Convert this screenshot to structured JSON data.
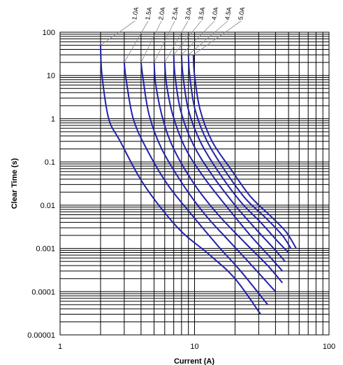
{
  "chart_data": {
    "type": "line",
    "xlabel": "Current (A)",
    "ylabel": "Clear Time (s)",
    "x_scale": "log",
    "y_scale": "log",
    "xlim": [
      1,
      100
    ],
    "ylim": [
      1e-05,
      100
    ],
    "x_ticks": [
      "1",
      "10",
      "100"
    ],
    "y_ticks": [
      "100",
      "10",
      "1",
      "0.1",
      "0.01",
      "0.001",
      "0.0001",
      "0.00001"
    ],
    "grid": true,
    "line_color": "#2222aa",
    "series": [
      {
        "name": "1.0A",
        "points": [
          [
            2.0,
            50
          ],
          [
            2.05,
            10
          ],
          [
            2.3,
            1
          ],
          [
            2.8,
            0.3
          ],
          [
            4.2,
            0.03
          ],
          [
            7.5,
            0.003
          ],
          [
            13,
            0.0007
          ],
          [
            20,
            0.0002
          ],
          [
            31,
            3e-05
          ]
        ]
      },
      {
        "name": "1.5A",
        "points": [
          [
            3.0,
            20
          ],
          [
            3.1,
            8
          ],
          [
            3.5,
            1
          ],
          [
            4.4,
            0.2
          ],
          [
            6.3,
            0.03
          ],
          [
            10,
            0.005
          ],
          [
            15.5,
            0.001
          ],
          [
            22,
            0.0003
          ],
          [
            35,
            5e-05
          ]
        ]
      },
      {
        "name": "2.0A",
        "points": [
          [
            4.0,
            20
          ],
          [
            4.15,
            8
          ],
          [
            4.6,
            1.2
          ],
          [
            5.7,
            0.2
          ],
          [
            8.2,
            0.03
          ],
          [
            12,
            0.006
          ],
          [
            18,
            0.0015
          ],
          [
            25,
            0.0005
          ],
          [
            40,
            0.0001
          ]
        ]
      },
      {
        "name": "2.5A",
        "points": [
          [
            5.0,
            20
          ],
          [
            5.15,
            6
          ],
          [
            5.8,
            1
          ],
          [
            7.0,
            0.2
          ],
          [
            10,
            0.03
          ],
          [
            15,
            0.006
          ],
          [
            24,
            0.0013
          ],
          [
            35,
            0.0004
          ],
          [
            45,
            0.00016
          ]
        ]
      },
      {
        "name": "3.0A",
        "points": [
          [
            6.0,
            20
          ],
          [
            6.2,
            6
          ],
          [
            6.9,
            1.2
          ],
          [
            8.6,
            0.2
          ],
          [
            12,
            0.04
          ],
          [
            18,
            0.008
          ],
          [
            26,
            0.002
          ],
          [
            37,
            0.0006
          ],
          [
            45,
            0.0003
          ]
        ]
      },
      {
        "name": "3.5A",
        "points": [
          [
            7.0,
            30
          ],
          [
            7.15,
            10
          ],
          [
            7.9,
            1.5
          ],
          [
            9.8,
            0.25
          ],
          [
            13.5,
            0.05
          ],
          [
            20,
            0.01
          ],
          [
            28,
            0.003
          ],
          [
            40,
            0.0009
          ],
          [
            47,
            0.0005
          ]
        ]
      },
      {
        "name": "4.0A",
        "points": [
          [
            8.0,
            30
          ],
          [
            8.2,
            10
          ],
          [
            9.0,
            1.6
          ],
          [
            11,
            0.3
          ],
          [
            15,
            0.06
          ],
          [
            22,
            0.012
          ],
          [
            31,
            0.004
          ],
          [
            42,
            0.0014
          ],
          [
            50,
            0.0008
          ]
        ]
      },
      {
        "name": "4.5A",
        "points": [
          [
            9.0,
            30
          ],
          [
            9.2,
            10
          ],
          [
            10.1,
            1.6
          ],
          [
            12.4,
            0.3
          ],
          [
            17,
            0.06
          ],
          [
            24,
            0.014
          ],
          [
            34,
            0.005
          ],
          [
            45,
            0.002
          ],
          [
            52,
            0.001
          ]
        ]
      },
      {
        "name": "5.0A",
        "points": [
          [
            9.8,
            30
          ],
          [
            10,
            10
          ],
          [
            11,
            1.6
          ],
          [
            13.5,
            0.3
          ],
          [
            18.5,
            0.07
          ],
          [
            26,
            0.016
          ],
          [
            37,
            0.0055
          ],
          [
            48,
            0.0024
          ],
          [
            57,
            0.001
          ]
        ]
      }
    ]
  }
}
